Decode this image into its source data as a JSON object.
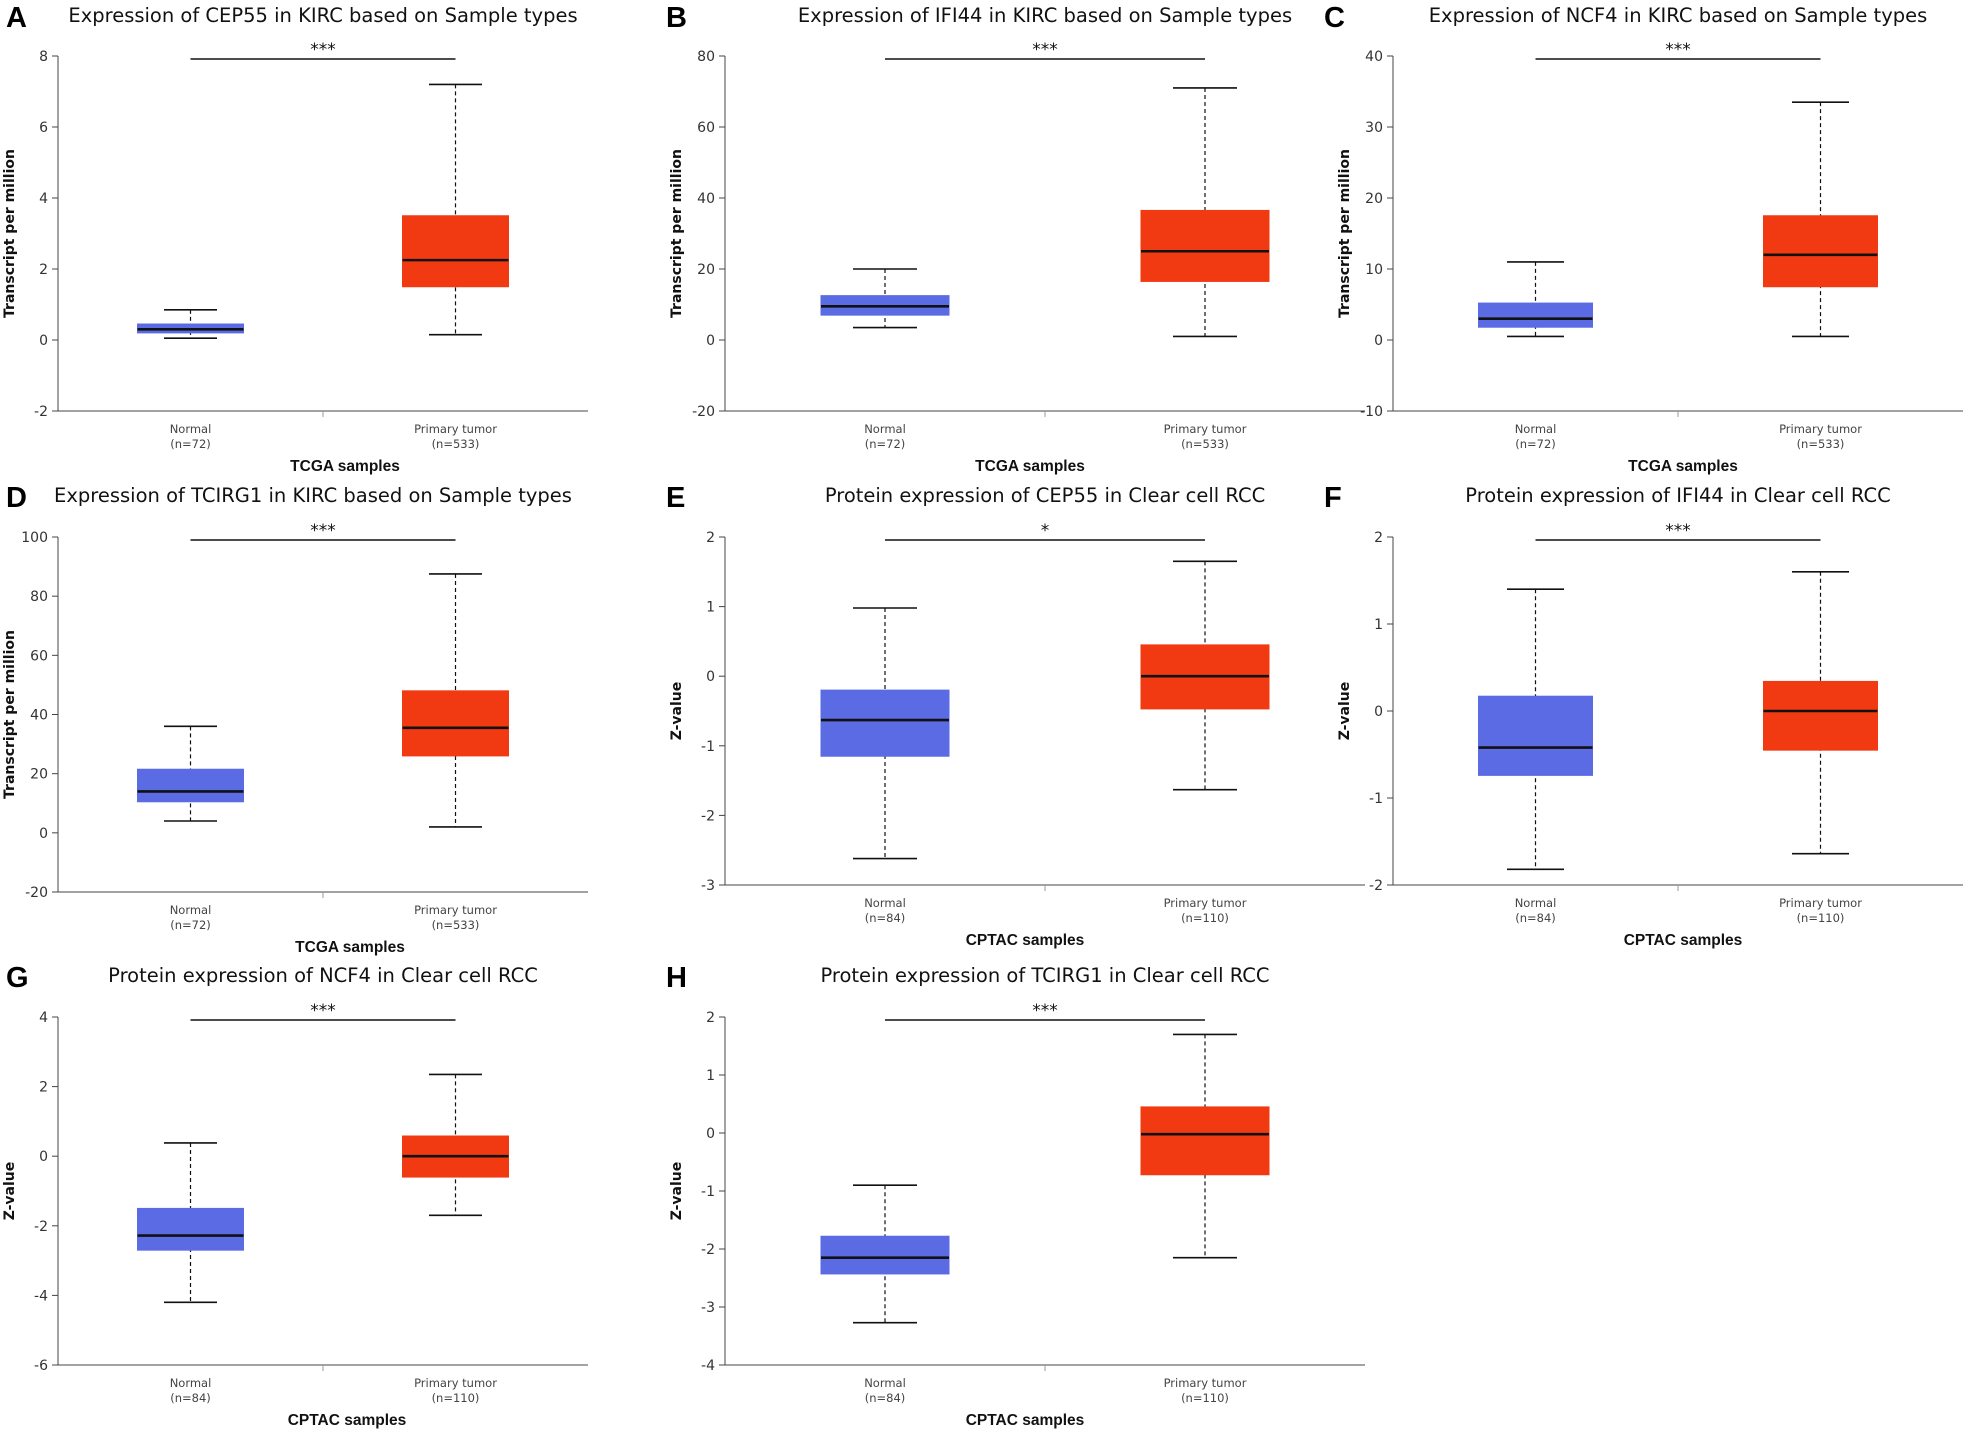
{
  "colors": {
    "normal": "#5B6BE3",
    "tumor": "#F23A12",
    "axis": "#333333"
  },
  "chart_data": [
    {
      "letter": "A",
      "type": "boxplot",
      "title": "Expression of CEP55 in KIRC based on Sample types",
      "ylabel": "Transcript per million",
      "xlabel": "TCGA samples",
      "ylim": [
        -2,
        8
      ],
      "yticks": [
        "-2",
        "0",
        "2",
        "4",
        "6",
        "8"
      ],
      "significance": "***",
      "boxes": [
        {
          "label": "Normal",
          "n": "(n=72)",
          "min": 0.05,
          "q1": 0.2,
          "median": 0.3,
          "q3": 0.45,
          "max": 0.85
        },
        {
          "label": "Primary tumor",
          "n": "(n=533)",
          "min": 0.15,
          "q1": 1.5,
          "median": 2.25,
          "q3": 3.5,
          "max": 7.2
        }
      ]
    },
    {
      "letter": "B",
      "type": "boxplot",
      "title": "Expression of IFI44 in KIRC based on Sample types",
      "ylabel": "Transcript per million",
      "xlabel": "TCGA samples",
      "ylim": [
        -20,
        80
      ],
      "yticks": [
        "-20",
        "0",
        "20",
        "40",
        "60",
        "80"
      ],
      "significance": "***",
      "boxes": [
        {
          "label": "Normal",
          "n": "(n=72)",
          "min": 3.5,
          "q1": 7,
          "median": 9.5,
          "q3": 12.5,
          "max": 20
        },
        {
          "label": "Primary tumor",
          "n": "(n=533)",
          "min": 1,
          "q1": 16.5,
          "median": 25,
          "q3": 36.5,
          "max": 71
        }
      ]
    },
    {
      "letter": "C",
      "type": "boxplot",
      "title": "Expression of NCF4 in KIRC based on Sample types",
      "ylabel": "Transcript per million",
      "xlabel": "TCGA samples",
      "ylim": [
        -10,
        40
      ],
      "yticks": [
        "-10",
        "0",
        "10",
        "20",
        "30",
        "40"
      ],
      "significance": "***",
      "boxes": [
        {
          "label": "Normal",
          "n": "(n=72)",
          "min": 0.5,
          "q1": 1.8,
          "median": 3,
          "q3": 5.2,
          "max": 11
        },
        {
          "label": "Primary tumor",
          "n": "(n=533)",
          "min": 0.5,
          "q1": 7.5,
          "median": 12,
          "q3": 17.5,
          "max": 33.5
        }
      ]
    },
    {
      "letter": "D",
      "type": "boxplot",
      "title": "Expression of TCIRG1 in KIRC based on Sample types",
      "ylabel": "Transcript per million",
      "xlabel": "TCGA samples",
      "ylim": [
        -20,
        100
      ],
      "yticks": [
        "-20",
        "0",
        "20",
        "40",
        "60",
        "80",
        "100"
      ],
      "significance": "***",
      "boxes": [
        {
          "label": "Normal",
          "n": "(n=72)",
          "min": 4,
          "q1": 10.5,
          "median": 14,
          "q3": 21.5,
          "max": 36
        },
        {
          "label": "Primary tumor",
          "n": "(n=533)",
          "min": 2,
          "q1": 26,
          "median": 35.5,
          "q3": 48,
          "max": 87.5
        }
      ]
    },
    {
      "letter": "E",
      "type": "boxplot",
      "title": "Protein expression of CEP55 in Clear cell RCC",
      "ylabel": "Z-value",
      "xlabel": "CPTAC samples",
      "ylim": [
        -3,
        2
      ],
      "yticks": [
        "-3",
        "-2",
        "-1",
        "0",
        "1",
        "2"
      ],
      "significance": "*",
      "boxes": [
        {
          "label": "Normal",
          "n": "(n=84)",
          "min": -2.62,
          "q1": -1.15,
          "median": -0.63,
          "q3": -0.2,
          "max": 0.98
        },
        {
          "label": "Primary tumor",
          "n": "(n=110)",
          "min": -1.63,
          "q1": -0.47,
          "median": 0,
          "q3": 0.45,
          "max": 1.65
        }
      ]
    },
    {
      "letter": "F",
      "type": "boxplot",
      "title": "Protein expression of IFI44 in Clear cell RCC",
      "ylabel": "Z-value",
      "xlabel": "CPTAC samples",
      "ylim": [
        -2,
        2
      ],
      "yticks": [
        "-2",
        "-1",
        "0",
        "1",
        "2"
      ],
      "significance": "***",
      "boxes": [
        {
          "label": "Normal",
          "n": "(n=84)",
          "min": -1.82,
          "q1": -0.74,
          "median": -0.42,
          "q3": 0.17,
          "max": 1.4
        },
        {
          "label": "Primary tumor",
          "n": "(n=110)",
          "min": -1.64,
          "q1": -0.45,
          "median": 0,
          "q3": 0.34,
          "max": 1.6
        }
      ]
    },
    {
      "letter": "G",
      "type": "boxplot",
      "title": "Protein expression of NCF4 in Clear cell RCC",
      "ylabel": "Z-value",
      "xlabel": "CPTAC samples",
      "ylim": [
        -6,
        4
      ],
      "yticks": [
        "-6",
        "-4",
        "-2",
        "0",
        "2",
        "4"
      ],
      "significance": "***",
      "boxes": [
        {
          "label": "Normal",
          "n": "(n=84)",
          "min": -4.2,
          "q1": -2.7,
          "median": -2.28,
          "q3": -1.5,
          "max": 0.38
        },
        {
          "label": "Primary tumor",
          "n": "(n=110)",
          "min": -1.7,
          "q1": -0.6,
          "median": 0,
          "q3": 0.58,
          "max": 2.35
        }
      ]
    },
    {
      "letter": "H",
      "type": "boxplot",
      "title": "Protein expression of TCIRG1 in Clear cell RCC",
      "ylabel": "Z-value",
      "xlabel": "CPTAC samples",
      "ylim": [
        -4,
        2
      ],
      "yticks": [
        "-4",
        "-3",
        "-2",
        "-1",
        "0",
        "1",
        "2"
      ],
      "significance": "***",
      "boxes": [
        {
          "label": "Normal",
          "n": "(n=84)",
          "min": -3.27,
          "q1": -2.43,
          "median": -2.15,
          "q3": -1.78,
          "max": -0.9
        },
        {
          "label": "Primary tumor",
          "n": "(n=110)",
          "min": -2.15,
          "q1": -0.72,
          "median": -0.02,
          "q3": 0.45,
          "max": 1.7
        }
      ]
    }
  ]
}
